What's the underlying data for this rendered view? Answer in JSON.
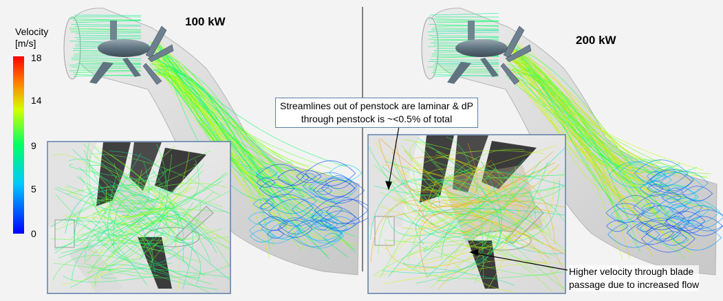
{
  "colorbar": {
    "title_line1": "Velocity",
    "title_line2": "[m/s]",
    "ticks": [
      "18",
      "14",
      "9",
      "5",
      "0"
    ],
    "tick_values": [
      18,
      14,
      9,
      5,
      0
    ],
    "range": [
      0,
      18
    ],
    "colormap": [
      "#0000ff",
      "#00c8ff",
      "#00ff66",
      "#d4ff00",
      "#ff8000",
      "#ff0000"
    ]
  },
  "panels": [
    {
      "title": "100 kW"
    },
    {
      "title": "200 kW"
    }
  ],
  "annotations": {
    "penstock_line1": "Streamlines out of penstock are laminar & dP",
    "penstock_line2": "through penstock is ~<0.5% of total",
    "blade_line1": "Higher velocity through blade",
    "blade_line2": "passage due to increased flow"
  },
  "colors": {
    "background": "#f3f3f3",
    "inset_border": "#5a7ea8",
    "duct": "#dcdcdc",
    "divider": "#333333"
  }
}
